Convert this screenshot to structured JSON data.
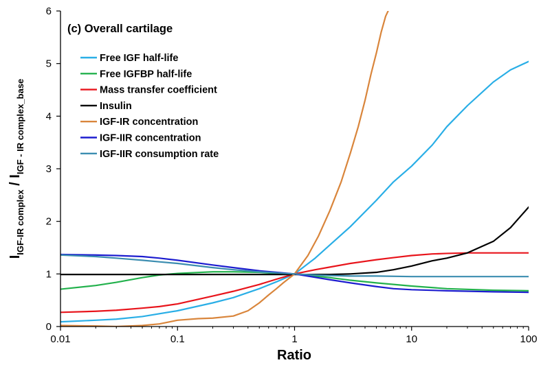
{
  "chart_data": {
    "type": "line",
    "title": "(c) Overall cartilage",
    "xlabel": "Ratio",
    "ylabel": {
      "main1": "I",
      "sub1": "IGF-IR complex",
      "sep": " / I",
      "sub2": "IGF - IR complex_base"
    },
    "x_scale": "log",
    "xlim": [
      0.01,
      100
    ],
    "ylim": [
      0,
      6
    ],
    "x_ticks": [
      0.01,
      0.1,
      1,
      10,
      100
    ],
    "x_tick_labels": [
      "0.01",
      "0.1",
      "1",
      "10",
      "100"
    ],
    "y_ticks": [
      0,
      1,
      2,
      3,
      4,
      5,
      6
    ],
    "y_tick_labels": [
      "0",
      "1",
      "2",
      "3",
      "4",
      "5",
      "6"
    ],
    "legend_position": "top-left",
    "series": [
      {
        "name": "Free IGF half-life",
        "color": "#29aee6",
        "x": [
          0.01,
          0.02,
          0.03,
          0.05,
          0.1,
          0.2,
          0.3,
          0.5,
          0.7,
          1,
          1.5,
          2,
          3,
          5,
          7,
          10,
          15,
          20,
          30,
          50,
          70,
          100
        ],
        "y": [
          0.09,
          0.12,
          0.14,
          0.19,
          0.3,
          0.45,
          0.55,
          0.72,
          0.85,
          1.0,
          1.3,
          1.55,
          1.9,
          2.4,
          2.75,
          3.05,
          3.45,
          3.8,
          4.2,
          4.65,
          4.88,
          5.04
        ]
      },
      {
        "name": "Free IGFBP half-life",
        "color": "#22b14c",
        "x": [
          0.01,
          0.02,
          0.03,
          0.05,
          0.07,
          0.1,
          0.2,
          0.3,
          0.5,
          0.7,
          1,
          2,
          3,
          5,
          10,
          20,
          50,
          100
        ],
        "y": [
          0.71,
          0.78,
          0.84,
          0.93,
          0.98,
          1.01,
          1.04,
          1.04,
          1.03,
          1.01,
          1.0,
          0.93,
          0.88,
          0.83,
          0.77,
          0.72,
          0.69,
          0.68
        ]
      },
      {
        "name": "Mass transfer coefficient",
        "color": "#e8141b",
        "x": [
          0.01,
          0.02,
          0.03,
          0.05,
          0.07,
          0.1,
          0.2,
          0.3,
          0.5,
          0.7,
          1,
          1.5,
          2,
          3,
          5,
          7,
          10,
          15,
          20,
          30,
          50,
          100
        ],
        "y": [
          0.27,
          0.29,
          0.31,
          0.35,
          0.38,
          0.43,
          0.58,
          0.67,
          0.8,
          0.9,
          1.0,
          1.08,
          1.13,
          1.2,
          1.27,
          1.31,
          1.35,
          1.38,
          1.39,
          1.4,
          1.4,
          1.4
        ]
      },
      {
        "name": "Insulin",
        "color": "#000000",
        "x": [
          0.01,
          0.1,
          1,
          2,
          3,
          5,
          7,
          10,
          15,
          20,
          30,
          50,
          70,
          100
        ],
        "y": [
          0.99,
          0.99,
          0.99,
          0.99,
          1.0,
          1.03,
          1.08,
          1.15,
          1.25,
          1.3,
          1.4,
          1.62,
          1.88,
          2.27
        ]
      },
      {
        "name": "IGF-IR concentration",
        "color": "#d9853b",
        "x": [
          0.01,
          0.02,
          0.03,
          0.05,
          0.07,
          0.1,
          0.15,
          0.2,
          0.3,
          0.4,
          0.5,
          0.6,
          0.7,
          0.8,
          1,
          1.3,
          1.6,
          2,
          2.5,
          3,
          3.5,
          4,
          4.5,
          5,
          5.5,
          6,
          6.3
        ],
        "y": [
          0.02,
          0.01,
          0.0,
          0.02,
          0.05,
          0.12,
          0.15,
          0.16,
          0.2,
          0.3,
          0.45,
          0.6,
          0.72,
          0.83,
          1.0,
          1.35,
          1.72,
          2.2,
          2.75,
          3.3,
          3.8,
          4.3,
          4.8,
          5.2,
          5.6,
          5.9,
          6.0
        ]
      },
      {
        "name": "IGF-IIR concentration",
        "color": "#1c1ccf",
        "x": [
          0.01,
          0.02,
          0.03,
          0.05,
          0.07,
          0.1,
          0.2,
          0.3,
          0.5,
          0.7,
          1,
          2,
          3,
          5,
          7,
          10,
          20,
          50,
          100
        ],
        "y": [
          1.37,
          1.36,
          1.35,
          1.33,
          1.3,
          1.26,
          1.17,
          1.12,
          1.06,
          1.03,
          1.0,
          0.89,
          0.83,
          0.76,
          0.72,
          0.7,
          0.68,
          0.66,
          0.65
        ]
      },
      {
        "name": "IGF-IIR consumption rate",
        "color": "#3b8db0",
        "x": [
          0.01,
          0.02,
          0.03,
          0.05,
          0.07,
          0.1,
          0.2,
          0.3,
          0.5,
          0.7,
          1,
          1.5,
          2,
          3,
          5,
          10,
          20,
          50,
          100
        ],
        "y": [
          1.36,
          1.33,
          1.3,
          1.26,
          1.23,
          1.2,
          1.12,
          1.08,
          1.04,
          1.02,
          1.0,
          0.98,
          0.97,
          0.96,
          0.96,
          0.95,
          0.95,
          0.95,
          0.95
        ]
      }
    ]
  }
}
